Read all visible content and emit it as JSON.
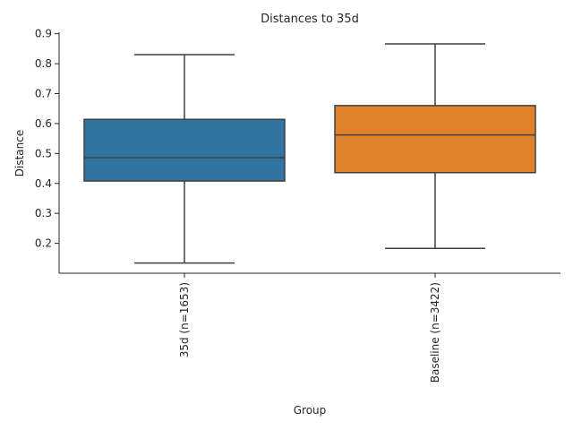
{
  "chart_data": {
    "type": "box",
    "title": "Distances to 35d",
    "xlabel": "Group",
    "ylabel": "Distance",
    "ylim": [
      0.1,
      0.905
    ],
    "yticks": [
      0.2,
      0.3,
      0.4,
      0.5,
      0.6,
      0.7,
      0.8,
      0.9
    ],
    "grid": false,
    "categories": [
      "35d (n=1653)",
      "Baseline (n=3422)"
    ],
    "boxes": [
      {
        "category": "35d (n=1653)",
        "whisker_low": 0.134,
        "q1": 0.408,
        "median": 0.486,
        "q3": 0.614,
        "whisker_high": 0.83,
        "color": "#3274a1"
      },
      {
        "category": "Baseline (n=3422)",
        "whisker_low": 0.183,
        "q1": 0.436,
        "median": 0.562,
        "q3": 0.66,
        "whisker_high": 0.866,
        "color": "#e1812c"
      }
    ]
  }
}
